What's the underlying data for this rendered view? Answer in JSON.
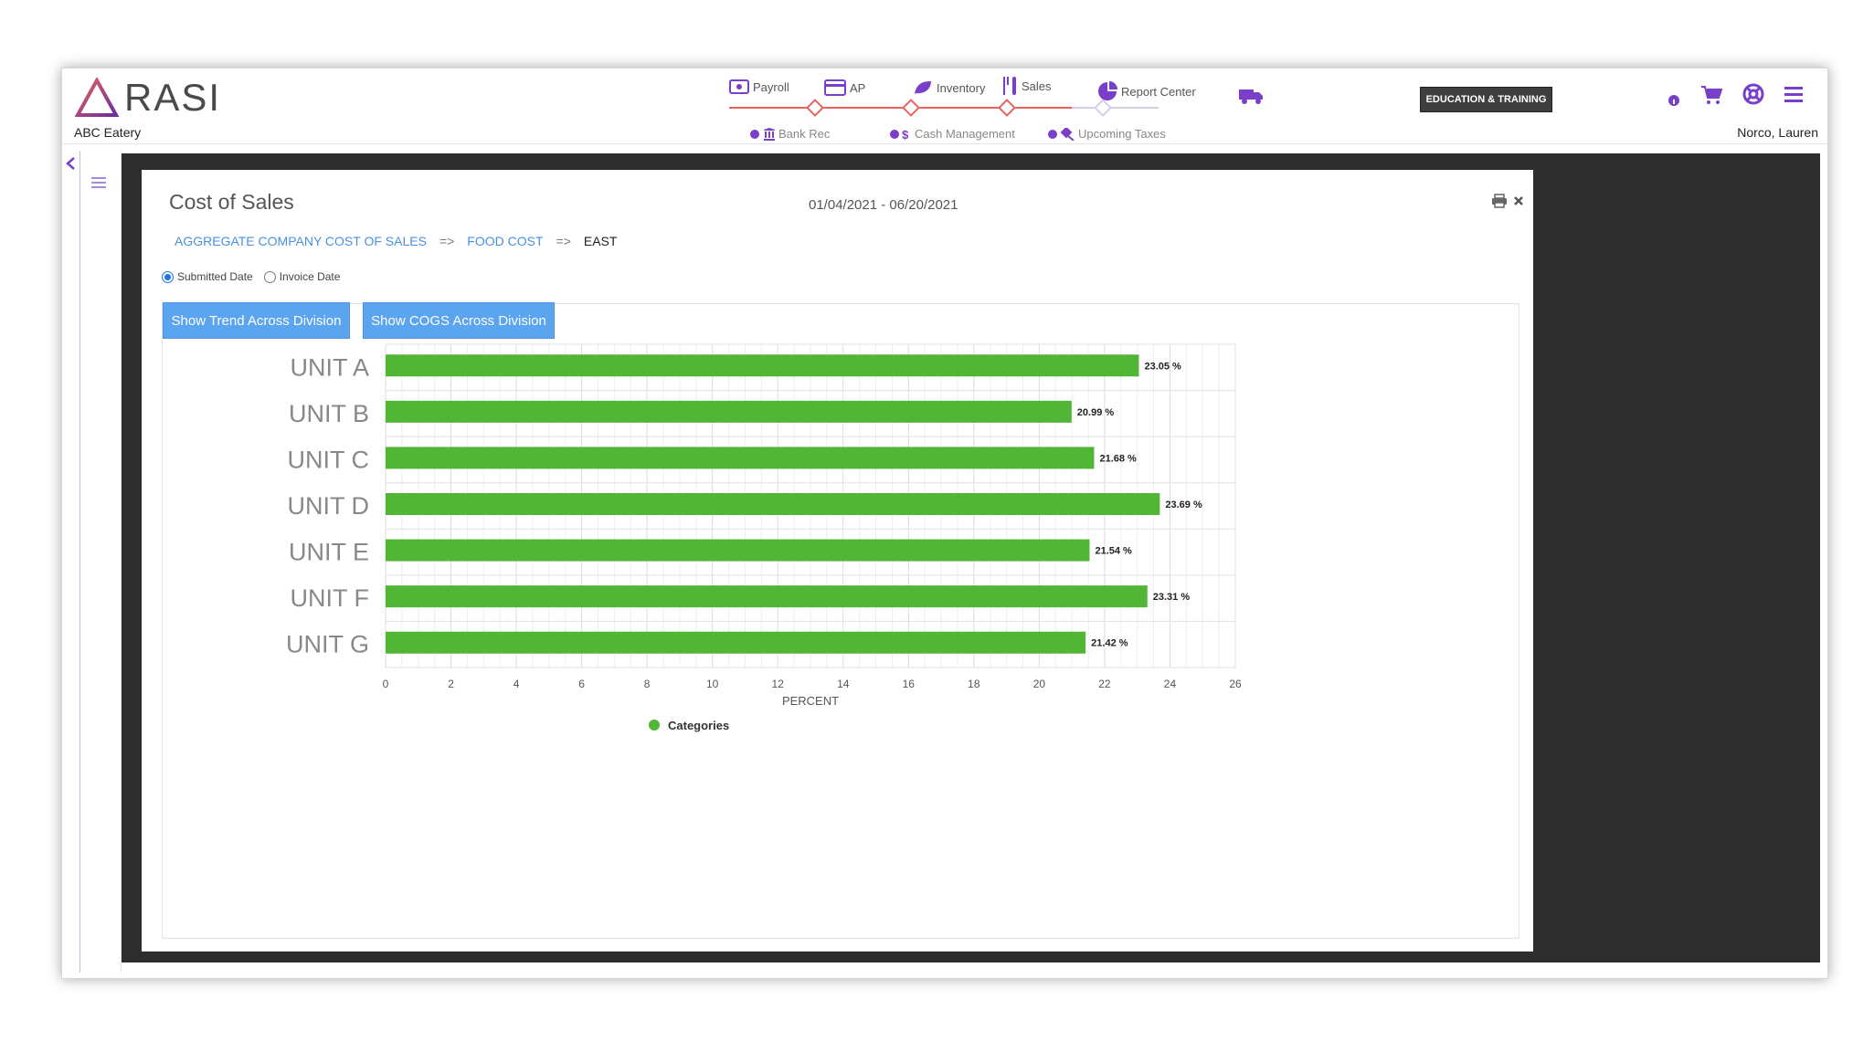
{
  "header": {
    "logo_text": "RASI",
    "company": "ABC Eatery",
    "user": "Norco, Lauren",
    "education_button": "EDUCATION & TRAINING",
    "nav": [
      {
        "label": "Payroll",
        "icon": "payroll-icon"
      },
      {
        "label": "AP",
        "icon": "credit-card-icon"
      },
      {
        "label": "Inventory",
        "icon": "leaf-icon"
      },
      {
        "label": "Sales",
        "icon": "utensils-icon"
      },
      {
        "label": "Report Center",
        "icon": "pie-chart-icon"
      }
    ],
    "subnav": [
      {
        "label": "Bank Rec",
        "icon": "bank-icon"
      },
      {
        "label": "Cash Management",
        "icon": "dollar-icon"
      },
      {
        "label": "Upcoming Taxes",
        "icon": "gavel-icon"
      }
    ],
    "right_icons": [
      "info-icon",
      "cart-icon",
      "lifebuoy-icon",
      "hamburger-menu-icon"
    ],
    "truck_icon": "truck-icon"
  },
  "modal": {
    "title": "Cost of Sales",
    "date_range": "01/04/2021 - 06/20/2021",
    "breadcrumb": {
      "level1": "AGGREGATE COMPANY COST OF SALES",
      "sep1": "=>",
      "level2": "FOOD COST",
      "sep2": "=>",
      "current": "EAST"
    },
    "radios": {
      "submitted": "Submitted Date",
      "invoice": "Invoice Date",
      "selected": "submitted"
    },
    "buttons": {
      "trend": "Show Trend Across Division",
      "cogs": "Show COGS Across Division"
    }
  },
  "chart_data": {
    "type": "bar",
    "orientation": "horizontal",
    "categories": [
      "UNIT A",
      "UNIT B",
      "UNIT C",
      "UNIT D",
      "UNIT E",
      "UNIT F",
      "UNIT G"
    ],
    "values": [
      23.05,
      20.99,
      21.68,
      23.69,
      21.54,
      23.31,
      21.42
    ],
    "value_labels": [
      "23.05 %",
      "20.99 %",
      "21.68 %",
      "23.69 %",
      "21.54 %",
      "23.31 %",
      "21.42 %"
    ],
    "xlabel": "PERCENT",
    "xlim": [
      0,
      26
    ],
    "x_ticks": [
      "0",
      "2",
      "4",
      "6",
      "8",
      "10",
      "12",
      "14",
      "16",
      "18",
      "20",
      "22",
      "24",
      "26"
    ],
    "legend": [
      "Categories"
    ],
    "legend_position": "bottom",
    "grid": true,
    "bar_color": "#51b635"
  }
}
